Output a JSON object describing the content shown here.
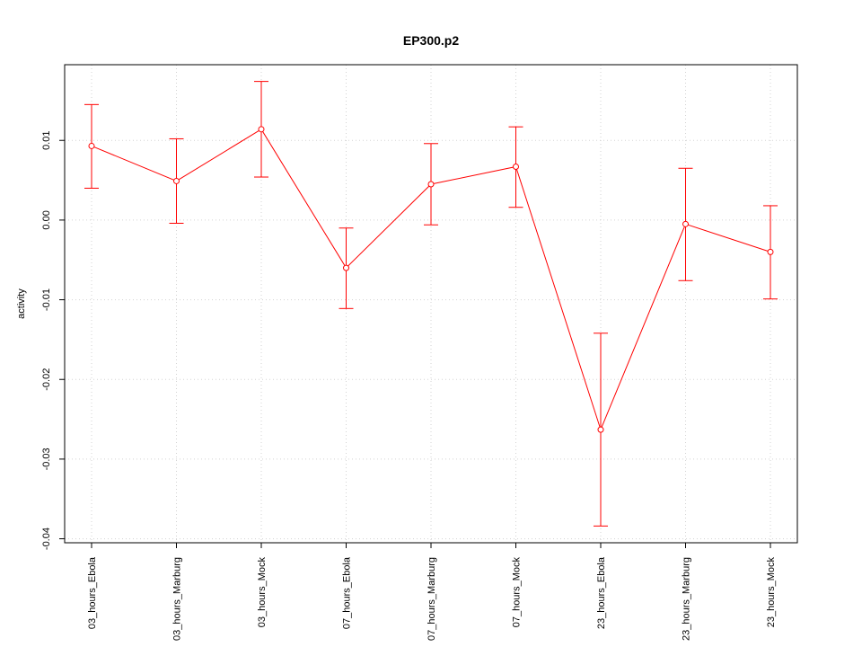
{
  "chart_data": {
    "type": "line",
    "title": "EP300.p2",
    "xlabel": "",
    "ylabel": "activity",
    "categories": [
      "03_hours_Ebola",
      "03_hours_Marburg",
      "03_hours_Mock",
      "07_hours_Ebola",
      "07_hours_Marburg",
      "07_hours_Mock",
      "23_hours_Ebola",
      "23_hours_Marburg",
      "23_hours_Mock"
    ],
    "series": [
      {
        "color": "#ff0000",
        "values": [
          0.0093,
          0.0049,
          0.0114,
          -0.006,
          0.0045,
          0.0067,
          -0.0263,
          -0.0005,
          -0.004
        ],
        "upper": [
          0.0145,
          0.0102,
          0.0174,
          -0.001,
          0.0096,
          0.0117,
          -0.0142,
          0.0065,
          0.0018
        ],
        "lower": [
          0.004,
          -0.0004,
          0.0054,
          -0.0111,
          -0.0006,
          0.0016,
          -0.0384,
          -0.0076,
          -0.0099
        ]
      }
    ],
    "yticks": [
      -0.04,
      -0.03,
      -0.02,
      -0.01,
      0.0,
      0.01
    ],
    "ytick_labels": [
      "-0.04",
      "-0.03",
      "-0.02",
      "-0.01",
      "0.00",
      "0.01"
    ],
    "ylim": [
      -0.0405,
      0.0195
    ],
    "grid": true,
    "legend": "none"
  }
}
